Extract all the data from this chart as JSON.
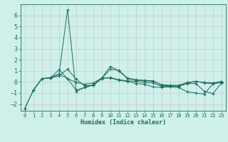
{
  "xlabel": "Humidex (Indice chaleur)",
  "ylabel": "",
  "bg_color": "#cff0ea",
  "line_color": "#1a6b5e",
  "grid_color": "#c8c8c8",
  "xlim": [
    -0.5,
    23.5
  ],
  "ylim": [
    -2.6,
    7.0
  ],
  "yticks": [
    -2,
    -1,
    0,
    1,
    2,
    3,
    4,
    5,
    6
  ],
  "xticks": [
    0,
    1,
    2,
    3,
    4,
    5,
    6,
    7,
    8,
    9,
    10,
    11,
    12,
    13,
    14,
    15,
    16,
    17,
    18,
    19,
    20,
    21,
    22,
    23
  ],
  "lines": [
    {
      "x": [
        0,
        1,
        2,
        3,
        4,
        5,
        6,
        7,
        8,
        9,
        10,
        11,
        12,
        13,
        14,
        15,
        16,
        17,
        18,
        19,
        20,
        21,
        22,
        23
      ],
      "y": [
        -2.4,
        -0.75,
        0.3,
        0.4,
        0.7,
        6.5,
        -0.85,
        -0.5,
        -0.3,
        0.3,
        1.15,
        1.05,
        0.35,
        0.2,
        0.15,
        0.1,
        -0.3,
        -0.35,
        -0.35,
        -0.1,
        0.05,
        -0.1,
        -0.15,
        -0.05
      ]
    },
    {
      "x": [
        0,
        1,
        2,
        3,
        4,
        5,
        6,
        7,
        8,
        9,
        10,
        11,
        12,
        13,
        14,
        15,
        16,
        17,
        18,
        19,
        20,
        21,
        22,
        23
      ],
      "y": [
        -2.4,
        -0.75,
        0.3,
        0.35,
        0.55,
        1.15,
        0.25,
        -0.35,
        -0.3,
        0.3,
        0.4,
        0.2,
        0.1,
        0.05,
        -0.05,
        -0.1,
        -0.4,
        -0.4,
        -0.4,
        -0.15,
        -0.15,
        -0.85,
        -1.05,
        -0.1
      ]
    },
    {
      "x": [
        1,
        2,
        3,
        4,
        5,
        6,
        7,
        8,
        9,
        10,
        11,
        12,
        13,
        14,
        15,
        16,
        17,
        18,
        19,
        20,
        21,
        22,
        23
      ],
      "y": [
        -0.75,
        0.3,
        0.35,
        1.1,
        0.3,
        -0.75,
        -0.5,
        -0.25,
        0.35,
        1.4,
        1.0,
        0.3,
        0.15,
        0.1,
        0.05,
        -0.25,
        -0.3,
        -0.3,
        -0.05,
        0.05,
        -0.05,
        -0.1,
        0.05
      ]
    },
    {
      "x": [
        1,
        2,
        3,
        4,
        5,
        6,
        7,
        8,
        9,
        10,
        11,
        12,
        13,
        14,
        15,
        16,
        17,
        18,
        19,
        20,
        21,
        22,
        23
      ],
      "y": [
        -0.75,
        0.3,
        0.35,
        0.7,
        0.3,
        -0.05,
        -0.2,
        -0.1,
        0.35,
        0.35,
        0.15,
        0.05,
        -0.15,
        -0.2,
        -0.45,
        -0.5,
        -0.45,
        -0.5,
        -0.9,
        -1.0,
        -1.1,
        -0.15,
        -0.05
      ]
    }
  ]
}
